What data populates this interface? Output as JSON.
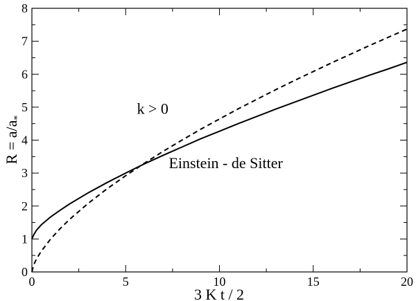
{
  "chart_data": {
    "type": "line",
    "title": "",
    "xlabel": "3 K t / 2",
    "ylabel": "R = a/a",
    "ylabel_subscript": "*",
    "xlim": [
      0,
      20
    ],
    "ylim": [
      0,
      8
    ],
    "x_ticks": [
      0,
      5,
      10,
      15,
      20
    ],
    "y_ticks": [
      0,
      1,
      2,
      3,
      4,
      5,
      6,
      7,
      8
    ],
    "grid": false,
    "legend": "none",
    "series": [
      {
        "label": "k > 0",
        "style": "solid",
        "color": "#000000",
        "x": [
          0,
          0.1,
          0.25,
          0.5,
          1,
          1.5,
          2,
          3,
          4,
          5,
          6,
          7,
          8,
          9,
          10,
          11,
          12,
          13,
          14,
          15,
          16,
          17,
          18,
          19,
          20
        ],
        "y": [
          1.0,
          1.13,
          1.27,
          1.43,
          1.67,
          1.87,
          2.06,
          2.4,
          2.71,
          3.0,
          3.28,
          3.54,
          3.79,
          4.04,
          4.27,
          4.5,
          4.72,
          4.94,
          5.15,
          5.36,
          5.57,
          5.77,
          5.97,
          6.16,
          6.36
        ]
      },
      {
        "label": "Einstein - de Sitter",
        "style": "dashed",
        "color": "#000000",
        "x": [
          0,
          0.1,
          0.25,
          0.5,
          1,
          1.5,
          2,
          3,
          4,
          5,
          6,
          7,
          8,
          9,
          10,
          11,
          12,
          13,
          14,
          15,
          16,
          17,
          18,
          19,
          20
        ],
        "y": [
          0.0,
          0.22,
          0.4,
          0.63,
          1.0,
          1.31,
          1.59,
          2.08,
          2.52,
          2.92,
          3.3,
          3.66,
          4.0,
          4.33,
          4.64,
          4.95,
          5.24,
          5.53,
          5.81,
          6.08,
          6.35,
          6.61,
          6.87,
          7.12,
          7.37
        ]
      }
    ],
    "annotations": [
      {
        "text": "k > 0",
        "x": 5.6,
        "y": 4.8
      },
      {
        "text": "Einstein - de Sitter",
        "x": 7.3,
        "y": 3.15
      }
    ]
  }
}
